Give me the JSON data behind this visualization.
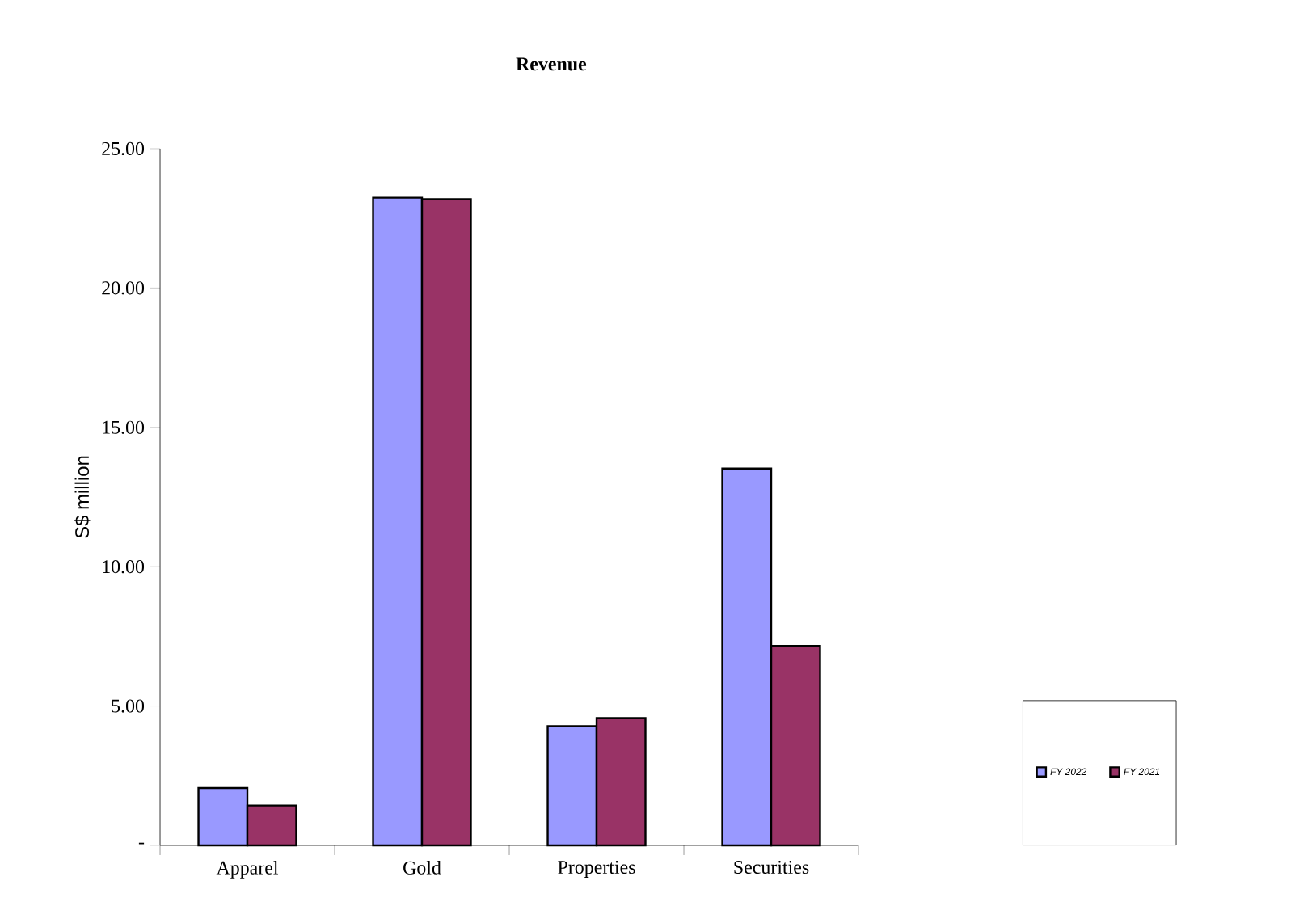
{
  "chart_data": {
    "type": "bar",
    "title": "Revenue",
    "ylabel": "S$ million",
    "categories": [
      "Apparel",
      "Gold",
      "Properties",
      "Securities"
    ],
    "series": [
      {
        "name": "FY 2022",
        "color": "#9999ff",
        "values": [
          2.06,
          23.24,
          4.28,
          13.52
        ]
      },
      {
        "name": "FY 2021",
        "color": "#993366",
        "values": [
          1.43,
          23.19,
          4.57,
          7.16
        ]
      }
    ],
    "ylim": [
      0,
      25
    ],
    "yticks": [
      {
        "value": 0,
        "label": "-"
      },
      {
        "value": 5,
        "label": "5.00"
      },
      {
        "value": 10,
        "label": "10.00"
      },
      {
        "value": 15,
        "label": "15.00"
      },
      {
        "value": 20,
        "label": "20.00"
      },
      {
        "value": 25,
        "label": "25.00"
      }
    ],
    "grid": false,
    "legend": "bottom right"
  }
}
